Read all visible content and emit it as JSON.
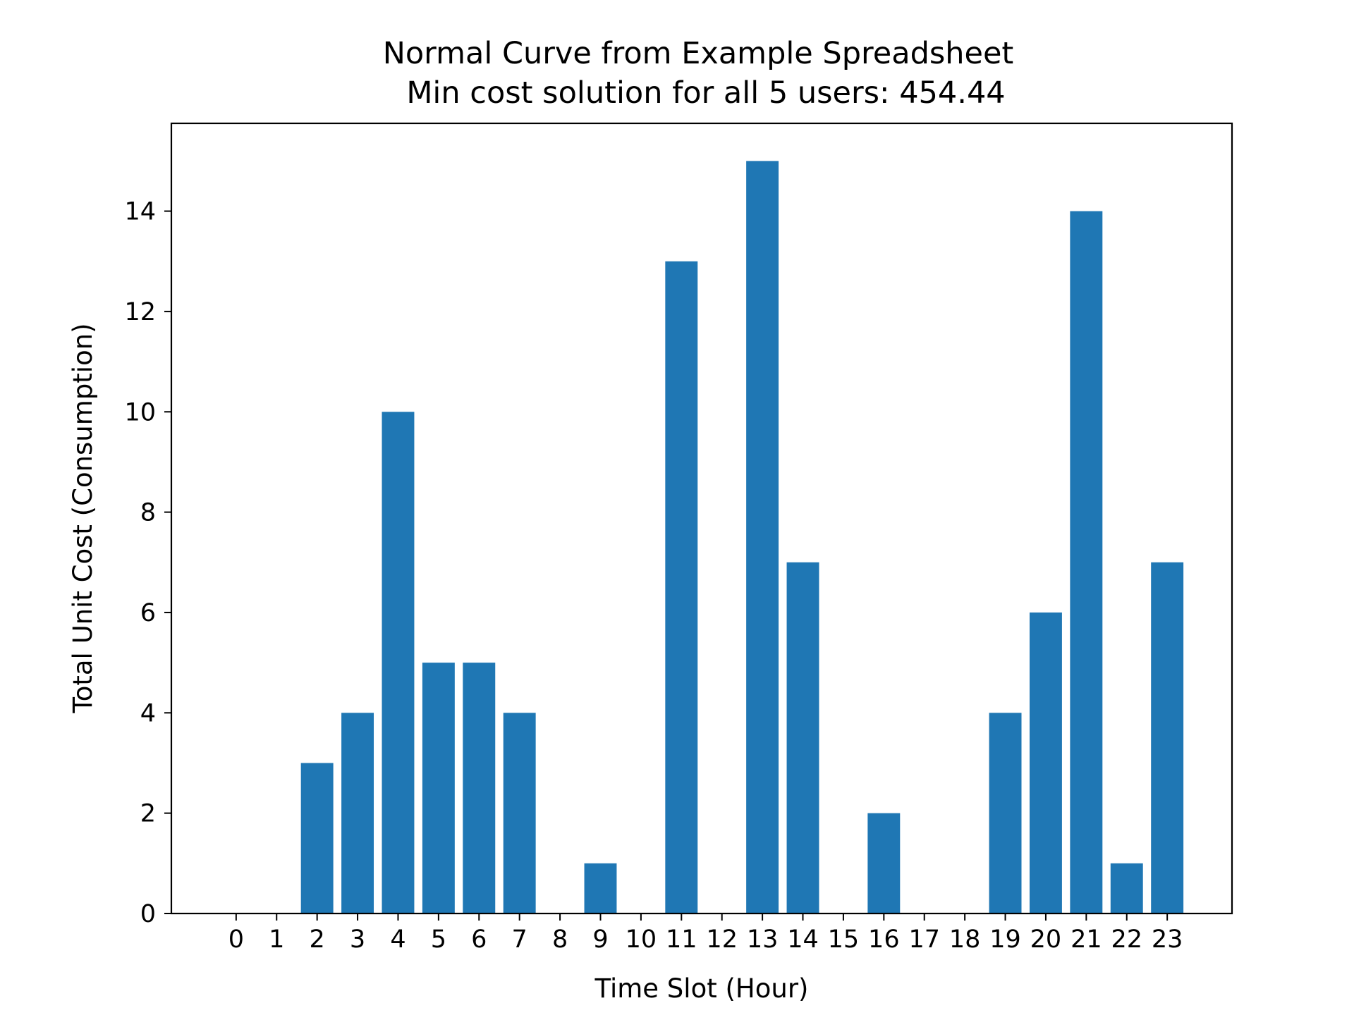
{
  "chart_data": {
    "type": "bar",
    "title": "Normal Curve from Example Spreadsheet",
    "subtitle": "Min cost solution for all 5 users: 454.44",
    "xlabel": "Time Slot (Hour)",
    "ylabel": "Total Unit Cost (Consumption)",
    "categories": [
      "0",
      "1",
      "2",
      "3",
      "4",
      "5",
      "6",
      "7",
      "8",
      "9",
      "10",
      "11",
      "12",
      "13",
      "14",
      "15",
      "16",
      "17",
      "18",
      "19",
      "20",
      "21",
      "22",
      "23"
    ],
    "values": [
      0,
      0,
      3,
      4,
      10,
      5,
      5,
      4,
      0,
      1,
      0,
      13,
      0,
      15,
      7,
      0,
      2,
      0,
      0,
      4,
      6,
      14,
      1,
      7
    ],
    "xlim": [
      -1.6,
      24.6
    ],
    "ylim": [
      0,
      15.75
    ],
    "yticks": [
      "0",
      "2",
      "4",
      "6",
      "8",
      "10",
      "12",
      "14"
    ],
    "grid": false,
    "legend": "none",
    "colors": {
      "bar": "#1f77b4",
      "axes": "#000000",
      "background": "#ffffff"
    }
  }
}
